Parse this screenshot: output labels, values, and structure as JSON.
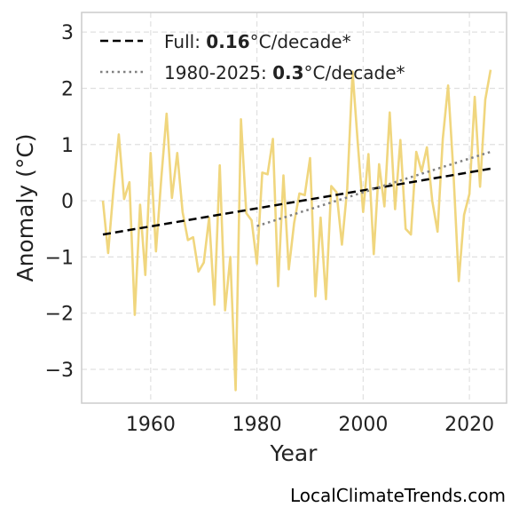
{
  "chart_data": {
    "type": "line",
    "xlabel": "Year",
    "ylabel": "Anomaly (°C)",
    "xlim": [
      1947,
      2027
    ],
    "ylim": [
      -3.6,
      3.35
    ],
    "x_ticks": [
      1960,
      1980,
      2000,
      2020
    ],
    "y_ticks": [
      -3,
      -2,
      -1,
      0,
      1,
      2,
      3
    ],
    "x_tick_labels": [
      "1960",
      "1980",
      "2000",
      "2020"
    ],
    "y_tick_labels": [
      "−3",
      "−2",
      "−1",
      "0",
      "1",
      "2",
      "3"
    ],
    "grid": true,
    "legend_position": "top-left",
    "series": [
      {
        "color": "#f0d67e",
        "x": [
          1951,
          1952,
          1953,
          1954,
          1955,
          1956,
          1957,
          1958,
          1959,
          1960,
          1961,
          1962,
          1963,
          1964,
          1965,
          1966,
          1967,
          1968,
          1969,
          1970,
          1971,
          1972,
          1973,
          1974,
          1975,
          1976,
          1977,
          1978,
          1979,
          1980,
          1981,
          1982,
          1983,
          1984,
          1985,
          1986,
          1987,
          1988,
          1989,
          1990,
          1991,
          1992,
          1993,
          1994,
          1995,
          1996,
          1997,
          1998,
          1999,
          2000,
          2001,
          2002,
          2003,
          2004,
          2005,
          2006,
          2007,
          2008,
          2009,
          2010,
          2011,
          2012,
          2013,
          2014,
          2015,
          2016,
          2017,
          2018,
          2019,
          2020,
          2021,
          2022,
          2023,
          2024
        ],
        "y": [
          0.0,
          -0.93,
          0.2,
          1.18,
          0.03,
          0.33,
          -2.03,
          -0.07,
          -1.32,
          0.85,
          -0.9,
          0.4,
          1.55,
          0.05,
          0.85,
          -0.2,
          -0.7,
          -0.65,
          -1.26,
          -1.1,
          -0.3,
          -1.85,
          0.63,
          -1.95,
          -1.0,
          -3.37,
          1.45,
          -0.22,
          -0.35,
          -1.12,
          0.5,
          0.47,
          1.1,
          -1.52,
          0.45,
          -1.22,
          -0.4,
          0.13,
          0.1,
          0.76,
          -1.7,
          -0.3,
          -1.75,
          0.26,
          0.15,
          -0.78,
          0.22,
          2.3,
          1.0,
          -0.2,
          0.83,
          -0.95,
          0.65,
          -0.1,
          1.57,
          -0.15,
          1.08,
          -0.5,
          -0.6,
          0.87,
          0.52,
          0.95,
          0.0,
          -0.55,
          1.1,
          2.05,
          0.5,
          -1.43,
          -0.25,
          0.12,
          1.85,
          0.25,
          1.8,
          2.33
        ]
      },
      {
        "name": "Full: 0.16°C/decade*",
        "color": "#000000",
        "dash": "dashed",
        "x": [
          1951,
          2024
        ],
        "y": [
          -0.6,
          0.57
        ]
      },
      {
        "name": "1980-2025: 0.3°C/decade*",
        "color": "#808080",
        "dash": "dotted",
        "x": [
          1980,
          2024
        ],
        "y": [
          -0.45,
          0.87
        ]
      }
    ],
    "legend": [
      {
        "prefix": "Full: ",
        "bold": "0.16",
        "suffix": "°C/decade*"
      },
      {
        "prefix": "1980-2025: ",
        "bold": "0.3",
        "suffix": "°C/decade*"
      }
    ]
  },
  "watermark": "LocalClimateTrends.com"
}
